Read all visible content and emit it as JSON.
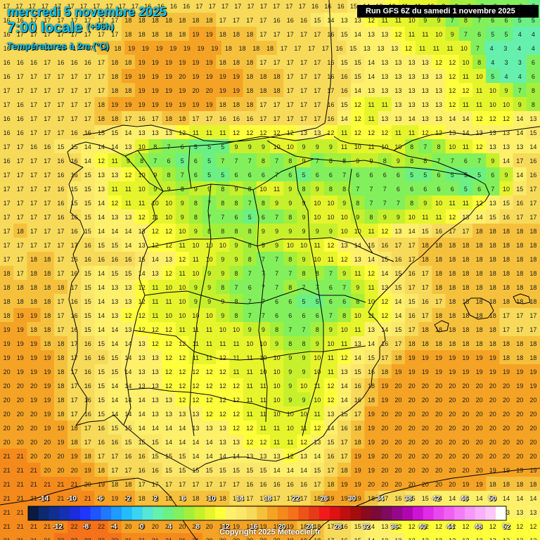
{
  "header": {
    "date": "mercredi 5 novembre 2025",
    "time": "7:00 locale",
    "lead": "(+96h)",
    "variable": "Températures à 2m (°C)"
  },
  "run_info": "Run GFS 6Z du samedi 1 novembre 2025",
  "copyright": "Copyright 2025 Meteociel.fr",
  "legend": {
    "top_labels": [
      "-14",
      "-10",
      "-6",
      "-2",
      "2",
      "6",
      "10",
      "14",
      "18",
      "22",
      "26",
      "30",
      "34",
      "38",
      "42",
      "46",
      "50"
    ],
    "bottom_labels": [
      "-12",
      "-8",
      "-4",
      "0",
      "4",
      "8",
      "12",
      "16",
      "20",
      "24",
      "28",
      "32",
      "36",
      "40",
      "44",
      "48",
      "52"
    ],
    "colors": [
      "#0a1a40",
      "#0d2a70",
      "#102f90",
      "#1431b4",
      "#1a2cdc",
      "#1f36ff",
      "#1f55ff",
      "#1f78ff",
      "#1f9bff",
      "#23bdff",
      "#3ad4f0",
      "#55e6d6",
      "#66f0ad",
      "#6cf083",
      "#82f05c",
      "#a3ef3b",
      "#c6f02c",
      "#e6f42c",
      "#ffff3c",
      "#fff06c",
      "#fbe76a",
      "#f7da5a",
      "#f5c13d",
      "#f5a325",
      "#f58a1c",
      "#f5721a",
      "#ee5418",
      "#e63b18",
      "#f21a1a",
      "#dd1212",
      "#c00f0f",
      "#a50d0d",
      "#8a0b1f",
      "#7a0a3a",
      "#800a60",
      "#96088a",
      "#b006b0",
      "#cc14d4",
      "#e02ce6",
      "#ea48ee",
      "#f060f2",
      "#f47cf5",
      "#f898f8",
      "#fab0fa",
      "#fcc8fc",
      "#ffffff"
    ]
  },
  "grid": {
    "rows": [
      "17 17 17 17 17 17 17 17 17 17 17 16 16 16 16 17 17 17 17 17 17 17 17 17 16 16 16 15 14 13 12 11 11 10 9 8 8 7 6 6 6 5",
      "16 16 17 17 17 17 17 17 17 18 18 18 18 18 18 18 17 17 17 17 16 16 16 15 14 13 13 12 11 11 10 9 9 7 8 7 6 6 5 5",
      "16 17 17 17 17 17 17 17 17 18 18 18 18 18 19 19 18 18 18 17 17 17 17 17 16 15 14 13 13 12 11 11 10 9 7 6 5 5 4 4",
      "16 16 16 16 16 17 17 18 18 19 19 19 19 19 19 19 18 18 18 18 17 17 17 17 16 15 13 13 13 12 11 11 11 10 7 4 3 4 4",
      "16 16 16 17 16 16 16 17 18 18 19 19 19 19 19 19 18 18 18 17 17 17 17 17 16 15 15 14 13 13 13 13 12 12 10 8 4 3 3 6",
      "16 17 17 17 17 17 17 17 18 19 19 19 19 20 19 19 19 19 18 18 18 17 17 17 16 16 15 14 13 13 13 13 13 12 11 10 5 4 4 6",
      "17 17 17 17 17 17 17 17 18 18 19 19 19 19 20 20 19 19 18 18 18 17 17 17 17 16 14 13 13 13 13 13 13 12 12 11 10 9 7 8",
      "17 16 17 17 17 17 17 18 19 19 19 19 19 19 19 19 18 18 18 17 17 17 17 17 16 15 12 11 11 13 13 13 13 12 11 11 10 10 9 8",
      "16 16 17 17 17 17 17 18 18 17 16 17 18 18 17 17 16 16 16 17 17 17 17 17 16 14 12 11 13 13 14 13 13 14 14 12 12 12 14 13",
      "16 16 17 17 17 16 16 15 15 14 13 13 13 12 11 11 11 12 12 12 12 12 13 13 12 11 12 12 12 11 11 12 12 13 14 13 13 13 14 15",
      "17 17 16 16 15 15 14 14 14 13 10 8 7 6 5 5 5 9 9 9 10 10 9 9 9 11 10 11 10 10 8 7 8 10 11 12 13 13 13 14",
      "16 17 17 17 16 16 14 12 11 9 8 7 6 5 6 5 7 7 7 8 7 8 9 7 8 8 9 9 8 9 8 8 7 7 6 7 9 14 17 16",
      "17 17 17 17 16 16 15 13 13 12 10 9 8 7 6 5 5 6 6 6 7 6 5 6 6 7 6 6 6 6 5 5 6 5 5 5 6 9 14 16",
      "17 17 17 17 16 15 15 13 11 11 10 9 9 8 9 9 8 9 8 10 11 9 8 9 8 8 7 7 7 6 6 6 6 6 5 6 7 10 15 17",
      "17 17 17 17 16 15 15 14 12 11 11 10 10 9 8 7 8 8 7 8 9 9 9 10 10 9 8 7 7 7 8 9 10 11 11 12 13 15 16 17",
      "17 17 17 17 16 16 15 14 13 13 12 11 10 9 8 7 7 6 5 6 7 8 9 10 10 10 9 8 9 9 10 11 11 12 13 14 15 16 17 17",
      "17 18 17 17 17 16 15 14 14 14 13 12 12 10 9 8 8 8 8 9 9 9 9 9 9 10 10 11 12 13 14 15 16 17 17 18 18 18 18 18",
      "17 17 17 17 17 17 16 15 15 14 13 12 12 11 10 10 10 9 8 9 9 10 10 11 12 13 14 15 16 17 17 18 18 18 18 18 18 18 18 18",
      "17 17 18 18 17 16 16 16 16 16 15 14 13 12 11 10 9 9 8 7 7 8 9 10 11 12 13 14 15 16 17 18 18 18 18 18 18 18 18 18",
      "18 17 18 18 17 16 15 14 15 15 14 13 12 11 10 9 9 8 7 7 7 7 8 8 7 9 11 12 14 15 16 17 18 18 18 18 18 18 18 18",
      "18 18 18 18 18 17 15 14 13 13 12 11 10 10 9 9 8 7 6 7 7 8 7 7 6 7 9 11 13 15 17 17 18 18 18 18 18 18 18 18",
      "18 18 18 18 17 16 15 14 13 13 12 11 11 10 9 9 9 8 7 7 6 6 5 5 6 6 8 10 12 14 15 16 17 18 18 18 18 18 18 18",
      "18 19 19 18 17 16 15 14 13 12 12 11 10 10 10 10 9 8 7 7 6 6 6 6 7 8 10 11 12 14 16 17 18 18 18 18 18 17 17 17",
      "19 19 18 18 17 16 15 14 14 13 12 12 12 11 11 11 10 10 9 9 8 7 7 8 9 10 11 13 14 15 17 18 18 18 18 18 18 17 17 17",
      "19 19 19 18 18 17 16 15 14 14 13 12 12 12 11 11 11 11 10 10 9 8 8 9 10 11 13 14 16 17 18 18 18 18 18 18 18 18 18 18",
      "19 19 19 19 18 17 16 16 15 14 13 13 12 12 11 11 12 11 11 10 10 9 9 10 11 12 14 15 17 18 19 19 19 19 19 19 19 18 18 18",
      "20 19 19 19 18 17 16 15 15 14 13 13 12 12 12 12 12 11 11 10 10 9 9 10 11 13 15 16 18 19 19 19 19 19 19 19 19 19 19 19",
      "20 20 20 19 18 17 16 15 14 14 13 13 12 12 12 12 12 12 11 11 10 9 10 11 12 14 16 18 19 20 20 20 20 20 20 20 20 20 19 19",
      "20 20 19 19 18 17 16 15 14 14 14 13 13 12 12 12 12 12 11 11 10 9 9 10 12 14 16 18 19 20 20 20 20 20 20 20 20 20 20 20",
      "20 20 20 19 18 17 16 15 14 14 14 13 13 13 13 12 12 12 11 11 10 10 10 11 13 15 17 19 20 20 20 20 20 20 20 20 20 20 20 20",
      "20 20 20 19 19 18 17 16 15 15 14 14 14 14 13 13 13 12 12 11 11 10 11 12 14 16 18 19 20 20 20 20 20 20 20 20 20 20 20 20",
      "20 20 20 20 19 18 17 16 16 15 15 15 14 14 14 14 13 13 12 12 11 11 12 13 15 17 18 19 20 20 20 20 20 20 20 20 20 20 20 20",
      "21 21 20 20 20 19 18 17 17 16 16 15 15 15 14 14 14 14 13 13 13 12 13 14 16 17 19 19 20 20 20 20 20 20 20 20 20 20 20 20",
      "21 21 21 20 20 20 19 18 17 17 16 16 15 15 15 15 15 15 15 15 14 14 14 15 17 18 19 19 20 20 20 20 20 20 20 20 19 19 19 19",
      "21 21 21 21 21 21 20 19 18 18 17 17 17 17 17 17 17 17 16 16 16 16 16 17 18 19 19 20 20 20 20 20 20 20 19 19 18 18 18 18",
      "21 21 21 21 21 21 21 20 19 19 18 18 18 18 18 18 18 17 17 17 17 17 17 18 19 19 19 18 17 16 15 15 14 14 14 14 14 14 14 14",
      "21 21 21 21 21 21 21 21 20 19 19 19 19 19 19 19 18 18 18 18 18 18 18 18 18 18 17 16 15 14 13 13 13 13 13 13 13 13 13 13",
      "21 21 21 21 21 22 22 22 21 20 20 20 20 20 20 20 19 19 19 19 19 19 18 18 17 16 15 14 13 12 12 12 12 12 12 12 12 12 12 12",
      "21 21 21 21 22 22 22 22 22 21 21 21 21 21 21 20 20 20 20 20 20 19 19 18 17 16 15 14 13 13 12 12 12 12 12 12 12 12 12 12"
    ]
  }
}
